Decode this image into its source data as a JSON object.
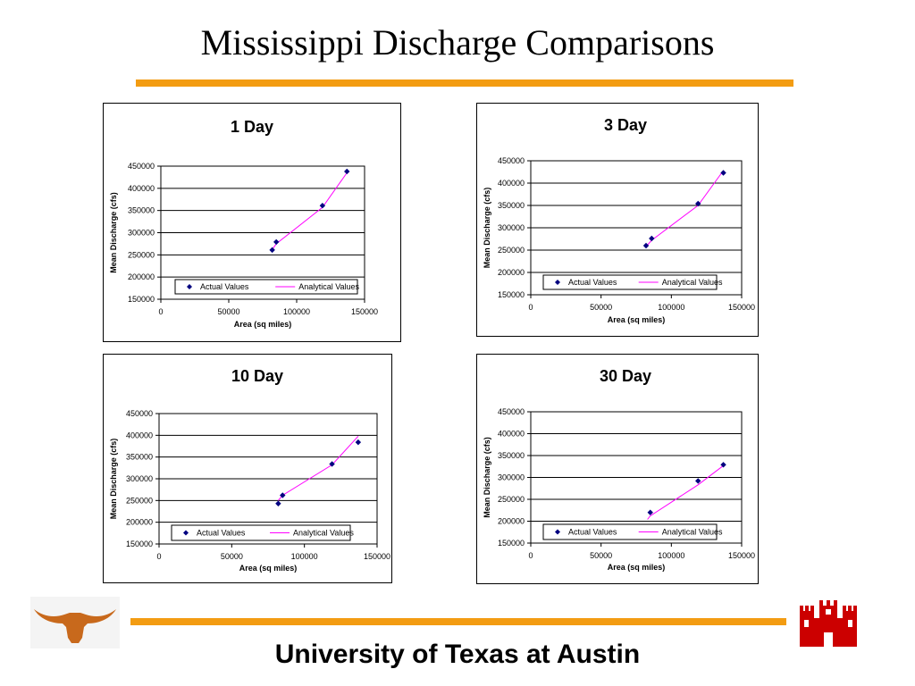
{
  "page": {
    "title": "Mississippi Discharge Comparisons",
    "footer": "University of Texas at Austin",
    "colors": {
      "accent_bar": "#F39C12",
      "marker": "#000080",
      "analytical_line": "#FF00FF",
      "logo_orange": "#C8691C",
      "castle_red": "#CC0000"
    },
    "icons": [
      "longhorn-logo-icon",
      "engineer-castle-icon"
    ]
  },
  "chart_data": [
    {
      "type": "scatter",
      "title": "1 Day",
      "xlabel": "Area (sq miles)",
      "ylabel": "Mean Discharge (cfs)",
      "xlim": [
        0,
        150000
      ],
      "ylim": [
        150000,
        450000
      ],
      "x_ticks": [
        "0",
        "50000",
        "100000",
        "150000"
      ],
      "y_ticks": [
        "150000",
        "200000",
        "250000",
        "300000",
        "350000",
        "400000",
        "450000"
      ],
      "grid": "horizontal",
      "legend": {
        "placement": "inside-bottom",
        "entries": [
          "Actual Values",
          "Analytical Values"
        ]
      },
      "series": [
        {
          "name": "Actual Values",
          "kind": "marker",
          "points": [
            [
              82000,
              261000
            ],
            [
              85000,
              279000
            ],
            [
              119000,
              361000
            ],
            [
              137000,
              438000
            ]
          ]
        },
        {
          "name": "Analytical Values",
          "kind": "line",
          "points": [
            [
              82000,
              262000
            ],
            [
              85000,
              275000
            ],
            [
              119000,
              357000
            ],
            [
              137000,
              435000
            ]
          ]
        }
      ]
    },
    {
      "type": "scatter",
      "title": "3 Day",
      "xlabel": "Area (sq miles)",
      "ylabel": "Mean Discharge (cfs)",
      "xlim": [
        0,
        150000
      ],
      "ylim": [
        150000,
        450000
      ],
      "x_ticks": [
        "0",
        "50000",
        "100000",
        "150000"
      ],
      "y_ticks": [
        "150000",
        "200000",
        "250000",
        "300000",
        "350000",
        "400000",
        "450000"
      ],
      "grid": "horizontal",
      "legend": {
        "placement": "inside-bottom",
        "entries": [
          "Actual Values",
          "Analytical Values"
        ]
      },
      "series": [
        {
          "name": "Actual Values",
          "kind": "marker",
          "points": [
            [
              82000,
              260000
            ],
            [
              86000,
              276000
            ],
            [
              119000,
              354000
            ],
            [
              137000,
              423000
            ]
          ]
        },
        {
          "name": "Analytical Values",
          "kind": "line",
          "points": [
            [
              82000,
              258000
            ],
            [
              86000,
              272000
            ],
            [
              119000,
              350000
            ],
            [
              137000,
              428000
            ]
          ]
        }
      ]
    },
    {
      "type": "scatter",
      "title": "10 Day",
      "xlabel": "Area (sq miles)",
      "ylabel": "Mean Discharge (cfs)",
      "xlim": [
        0,
        150000
      ],
      "ylim": [
        150000,
        450000
      ],
      "x_ticks": [
        "0",
        "50000",
        "100000",
        "150000"
      ],
      "y_ticks": [
        "150000",
        "200000",
        "250000",
        "300000",
        "350000",
        "400000",
        "450000"
      ],
      "grid": "horizontal",
      "legend": {
        "placement": "inside-bottom",
        "entries": [
          "Actual Values",
          "Analytical Values"
        ]
      },
      "series": [
        {
          "name": "Actual Values",
          "kind": "marker",
          "points": [
            [
              82000,
              243000
            ],
            [
              85000,
              262000
            ],
            [
              119000,
              334000
            ],
            [
              137000,
              384000
            ]
          ]
        },
        {
          "name": "Analytical Values",
          "kind": "line",
          "points": [
            [
              82000,
              250000
            ],
            [
              85000,
              262000
            ],
            [
              119000,
              332000
            ],
            [
              137000,
              398000
            ]
          ]
        }
      ]
    },
    {
      "type": "scatter",
      "title": "30 Day",
      "xlabel": "Area (sq miles)",
      "ylabel": "Mean Discharge (cfs)",
      "xlim": [
        0,
        150000
      ],
      "ylim": [
        150000,
        450000
      ],
      "x_ticks": [
        "0",
        "50000",
        "100000",
        "150000"
      ],
      "y_ticks": [
        "150000",
        "200000",
        "250000",
        "300000",
        "350000",
        "400000",
        "450000"
      ],
      "grid": "horizontal",
      "legend": {
        "placement": "inside-bottom",
        "entries": [
          "Actual Values",
          "Analytical Values"
        ]
      },
      "series": [
        {
          "name": "Actual Values",
          "kind": "marker",
          "points": [
            [
              85000,
              220000
            ],
            [
              119000,
              292000
            ],
            [
              137000,
              329000
            ]
          ]
        },
        {
          "name": "Analytical Values",
          "kind": "line",
          "points": [
            [
              83000,
              204000
            ],
            [
              85000,
              212000
            ],
            [
              119000,
              283000
            ],
            [
              137000,
              327000
            ]
          ]
        }
      ]
    }
  ]
}
